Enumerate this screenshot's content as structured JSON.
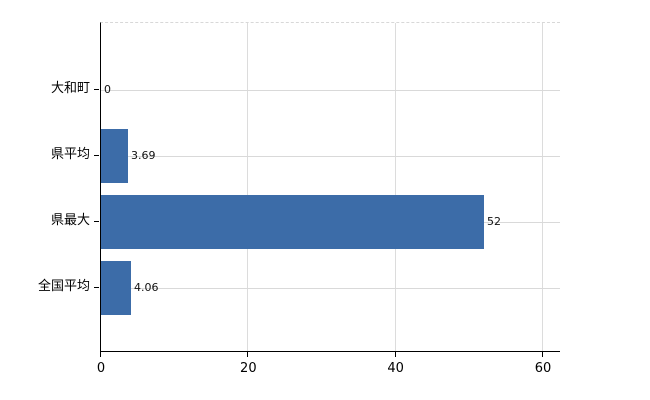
{
  "chart_data": {
    "type": "bar",
    "orientation": "horizontal",
    "title": "",
    "xlabel": "",
    "ylabel": "",
    "categories": [
      "大和町",
      "県平均",
      "県最大",
      "全国平均"
    ],
    "values": [
      0,
      3.69,
      52,
      4.06
    ],
    "value_labels": [
      "0",
      "3.69",
      "52",
      "4.06"
    ],
    "x_ticks": [
      0,
      20,
      40,
      60
    ],
    "x_tick_labels": [
      "0",
      "20",
      "40",
      "60"
    ],
    "xlim": [
      0,
      62.4
    ],
    "grid": "both",
    "legend": "none",
    "colors": {
      "bar": "#3c6ca8",
      "grid": "#d9d9d9",
      "axis": "#000000",
      "text": "#000000",
      "background": "#ffffff"
    }
  }
}
